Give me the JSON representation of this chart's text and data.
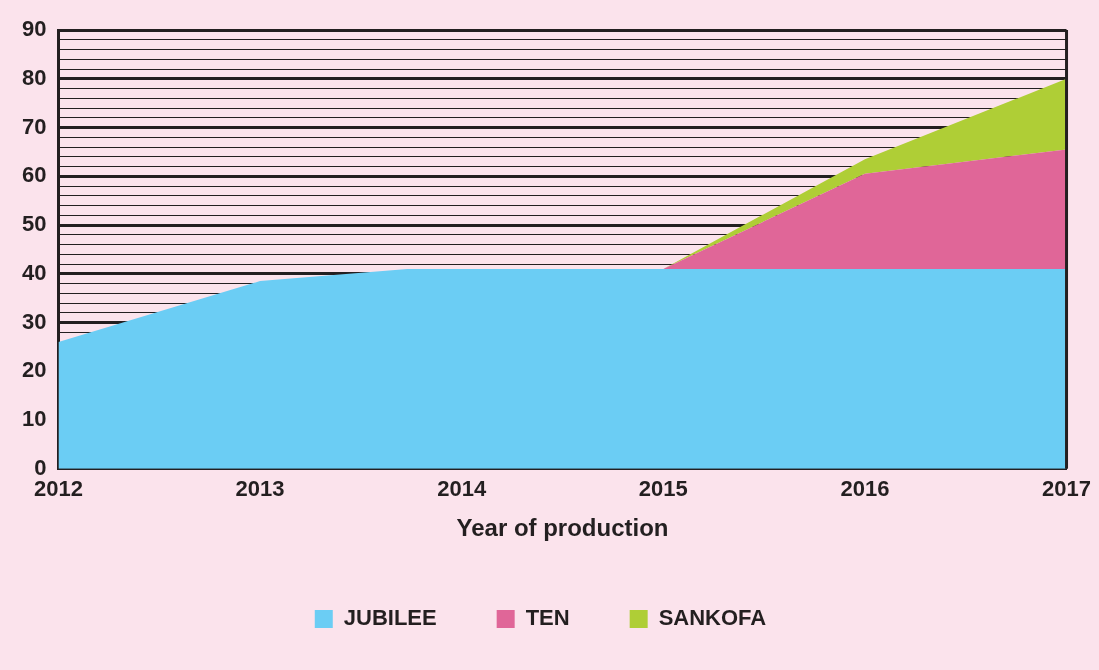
{
  "chart_data": {
    "type": "area",
    "stacked": true,
    "xlabel": "Year of production",
    "x": [
      2012,
      2013,
      2013.73,
      2014,
      2015,
      2016,
      2017
    ],
    "series": [
      {
        "name": "JUBILEE",
        "color": "#6bcdf4",
        "values": [
          26,
          38.5,
          41,
          41,
          41,
          41,
          41
        ]
      },
      {
        "name": "TEN",
        "color": "#e06698",
        "values": [
          null,
          null,
          null,
          null,
          0,
          19.5,
          24.5
        ]
      },
      {
        "name": "SANKOFA",
        "color": "#afce36",
        "values": [
          null,
          null,
          null,
          null,
          0,
          3,
          14.5
        ]
      }
    ],
    "xlim": [
      2012,
      2017
    ],
    "xticks": [
      2012,
      2013,
      2014,
      2015,
      2016,
      2017
    ],
    "ylim": [
      0,
      90
    ],
    "yticks": [
      0,
      10,
      20,
      {
        "value": 28,
        "label": null
      },
      30,
      {
        "value": 32,
        "label": null
      },
      {
        "value": 34,
        "label": null
      },
      {
        "value": 36,
        "label": null
      },
      {
        "value": 38,
        "label": null
      },
      40,
      {
        "value": 42,
        "label": null
      },
      {
        "value": 44,
        "label": null
      },
      {
        "value": 46,
        "label": null
      },
      {
        "value": 48,
        "label": null
      },
      50,
      {
        "value": 52,
        "label": null
      },
      {
        "value": 54,
        "label": null
      },
      {
        "value": 56,
        "label": null
      },
      {
        "value": 58,
        "label": null
      },
      60,
      {
        "value": 62,
        "label": null
      },
      {
        "value": 64,
        "label": null
      },
      {
        "value": 66,
        "label": null
      },
      {
        "value": 68,
        "label": null
      },
      70,
      {
        "value": 72,
        "label": null
      },
      {
        "value": 74,
        "label": null
      },
      {
        "value": 76,
        "label": null
      },
      {
        "value": 78,
        "label": null
      },
      80,
      {
        "value": 82,
        "label": null
      },
      {
        "value": 84,
        "label": null
      },
      {
        "value": 86,
        "label": null
      },
      {
        "value": 88,
        "label": null
      },
      90
    ],
    "grid": "y",
    "legend": "bottom"
  }
}
